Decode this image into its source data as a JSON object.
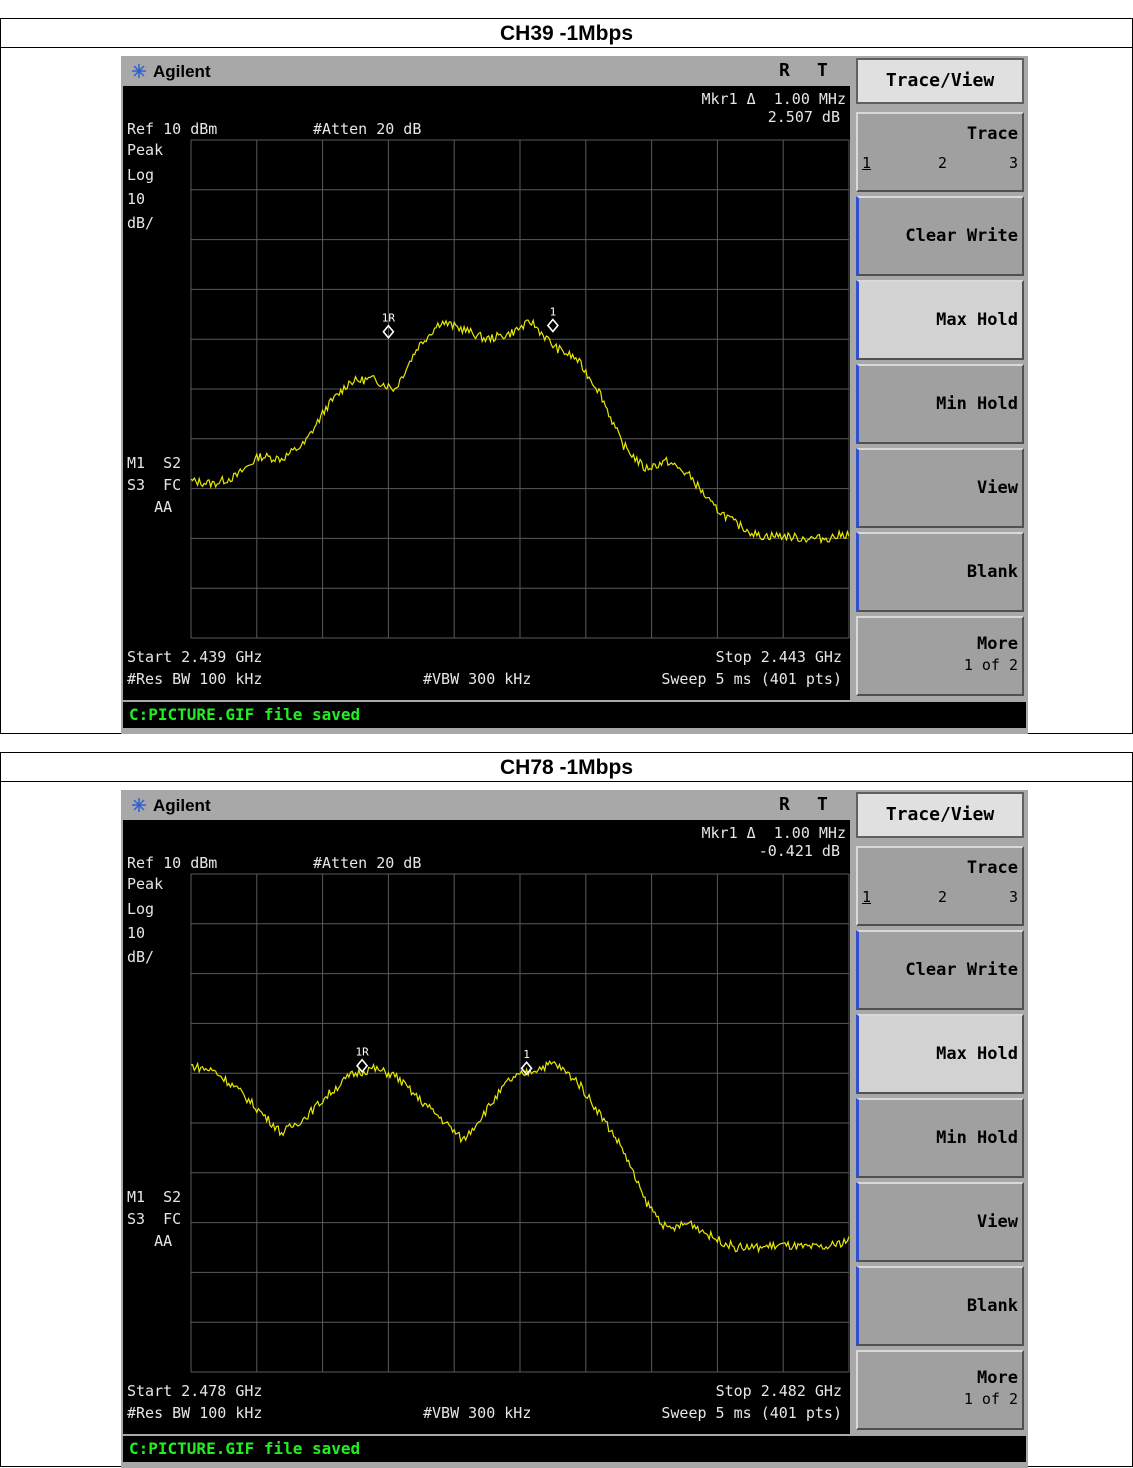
{
  "panels": [
    {
      "title": "CH39 -1Mbps",
      "brand": "Agilent",
      "indicator_r": "R",
      "indicator_t": "T",
      "marker_line1": "Mkr1 Δ  1.00 MHz",
      "marker_line2": "2.507 dB",
      "ref_level": "Ref 10 dBm",
      "atten": "#Atten 20 dB",
      "scale_lines": [
        "Peak",
        "Log",
        "10",
        "dB/"
      ],
      "status_lines": [
        "M1  S2",
        "S3  FC",
        "   AA"
      ],
      "start": "Start 2.439 GHz",
      "stop": "Stop 2.443 GHz",
      "res_bw": "#Res BW 100 kHz",
      "vbw": "#VBW 300 kHz",
      "sweep": "Sweep 5 ms (401 pts)",
      "message": "C:PICTURE.GIF file saved",
      "marker_ref_label": "1R",
      "marker_delta_label": "1",
      "softkeys": {
        "title": "Trace/View",
        "trace": "Trace",
        "trace_options": [
          "1",
          "2",
          "3"
        ],
        "clear_write": "Clear Write",
        "max_hold": "Max Hold",
        "min_hold": "Min Hold",
        "view": "View",
        "blank": "Blank",
        "more": "More",
        "more_page": "1 of 2"
      },
      "trace_levels_div": [
        6.3,
        6.2,
        6.5,
        7.3,
        7.2,
        7.8,
        9.3,
        10.3,
        10.4,
        10.0,
        11.7,
        12.7,
        12.4,
        12.0,
        12.2,
        12.7,
        11.7,
        11.2,
        9.9,
        7.8,
        6.8,
        7.1,
        6.5,
        5.3,
        4.6,
        4.1,
        4.1,
        4.0,
        4.0,
        4.2
      ],
      "marker_ref": {
        "x_div": 3.0,
        "y_div": 12.3
      },
      "marker_delta": {
        "x_div": 5.5,
        "y_div": 12.55
      }
    },
    {
      "title": "CH78 -1Mbps",
      "brand": "Agilent",
      "indicator_r": "R",
      "indicator_t": "T",
      "marker_line1": "Mkr1 Δ  1.00 MHz",
      "marker_line2": "-0.421 dB",
      "ref_level": "Ref 10 dBm",
      "atten": "#Atten 20 dB",
      "scale_lines": [
        "Peak",
        "Log",
        "10",
        "dB/"
      ],
      "status_lines": [
        "M1  S2",
        "S3  FC",
        "   AA"
      ],
      "start": "Start 2.478 GHz",
      "stop": "Stop 2.482 GHz",
      "res_bw": "#Res BW 100 kHz",
      "vbw": "#VBW 300 kHz",
      "sweep": "Sweep 5 ms (401 pts)",
      "message": "C:PICTURE.GIF file saved",
      "marker_ref_label": "1R",
      "marker_delta_label": "1",
      "softkeys": {
        "title": "Trace/View",
        "trace": "Trace",
        "trace_options": [
          "1",
          "2",
          "3"
        ],
        "clear_write": "Clear Write",
        "max_hold": "Max Hold",
        "min_hold": "Min Hold",
        "view": "View",
        "blank": "Blank",
        "more": "More",
        "more_page": "1 of 2"
      },
      "trace_levels_div": [
        12.3,
        12.1,
        11.4,
        10.5,
        9.6,
        10.2,
        11.1,
        11.9,
        12.2,
        11.9,
        11.0,
        10.2,
        9.3,
        10.5,
        11.7,
        12.1,
        12.4,
        11.7,
        10.4,
        9.0,
        6.9,
        5.7,
        6.0,
        5.4,
        5.0,
        5.0,
        5.1,
        5.0,
        5.0,
        5.3
      ],
      "marker_ref": {
        "x_div": 2.6,
        "y_div": 12.3
      },
      "marker_delta": {
        "x_div": 5.1,
        "y_div": 12.2
      }
    }
  ]
}
